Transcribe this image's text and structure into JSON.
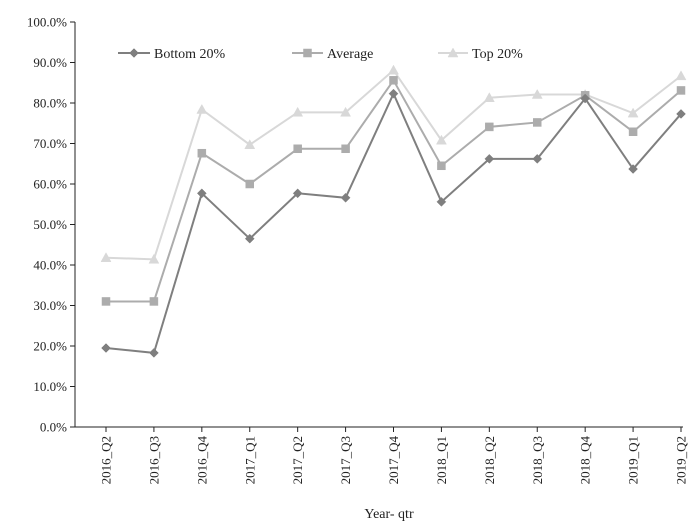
{
  "chart_data": {
    "type": "line",
    "title": "",
    "xlabel": "Year- qtr",
    "ylabel": "",
    "categories": [
      "2016_Q2",
      "2016_Q3",
      "2016_Q4",
      "2017_Q1",
      "2017_Q2",
      "2017_Q3",
      "2017_Q4",
      "2018_Q1",
      "2018_Q2",
      "2018_Q3",
      "2018_Q4",
      "2019_Q1",
      "2019_Q2"
    ],
    "ylim": [
      0,
      100
    ],
    "y_ticks": [
      "0.0%",
      "10.0%",
      "20.0%",
      "30.0%",
      "40.0%",
      "50.0%",
      "60.0%",
      "70.0%",
      "80.0%",
      "90.0%",
      "100.0%"
    ],
    "y_tick_values": [
      0,
      10,
      20,
      30,
      40,
      50,
      60,
      70,
      80,
      90,
      100
    ],
    "grid": false,
    "legend_position": "top",
    "series": [
      {
        "name": "Bottom 20%",
        "marker": "diamond",
        "color": "#7f7f7f",
        "values": [
          19.5,
          18.3,
          57.7,
          46.5,
          57.7,
          56.6,
          82.3,
          55.6,
          66.2,
          66.2,
          81.1,
          63.7,
          77.3
        ]
      },
      {
        "name": "Average",
        "marker": "square",
        "color": "#acacac",
        "values": [
          31.0,
          31.0,
          67.6,
          60.0,
          68.7,
          68.7,
          85.6,
          64.5,
          74.1,
          75.2,
          81.9,
          72.9,
          83.1
        ]
      },
      {
        "name": "Top 20%",
        "marker": "triangle",
        "color": "#d8d8d8",
        "values": [
          41.8,
          41.4,
          78.4,
          69.7,
          77.7,
          77.7,
          88.1,
          70.8,
          81.3,
          82.1,
          82.1,
          77.5,
          86.7
        ]
      }
    ]
  }
}
